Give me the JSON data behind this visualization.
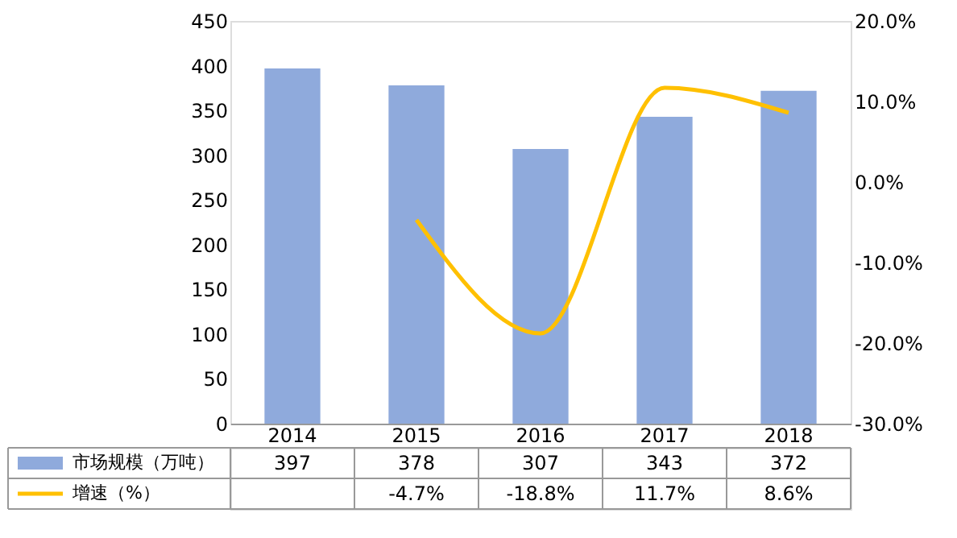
{
  "chart_data": {
    "type": "bar",
    "categories": [
      "2014",
      "2015",
      "2016",
      "2017",
      "2018"
    ],
    "series": [
      {
        "name": "市场规模（万吨）",
        "color": "#8faadc",
        "values": [
          397,
          378,
          307,
          343,
          372
        ],
        "value_labels": [
          "397",
          "378",
          "307",
          "343",
          "372"
        ]
      },
      {
        "name": "增速（%）",
        "type": "line",
        "axis": "y2",
        "color": "#ffc000",
        "values": [
          null,
          -4.7,
          -18.8,
          11.7,
          8.6
        ],
        "value_labels": [
          null,
          "-4.7%",
          "-18.8%",
          "11.7%",
          "8.6%"
        ]
      }
    ],
    "ylim": [
      0,
      450
    ],
    "yticks": [
      0,
      50,
      100,
      150,
      200,
      250,
      300,
      350,
      400,
      450
    ],
    "y2lim": [
      -30,
      20
    ],
    "y2ticks": [
      {
        "value": -30,
        "label": "-30.0%"
      },
      {
        "value": -20,
        "label": "-20.0%"
      },
      {
        "value": -10,
        "label": "-10.0%"
      },
      {
        "value": 0,
        "label": "0.0%"
      },
      {
        "value": 10,
        "label": "10.0%"
      },
      {
        "value": 20,
        "label": "20.0%"
      }
    ],
    "grid": false,
    "legend": "bottom"
  }
}
